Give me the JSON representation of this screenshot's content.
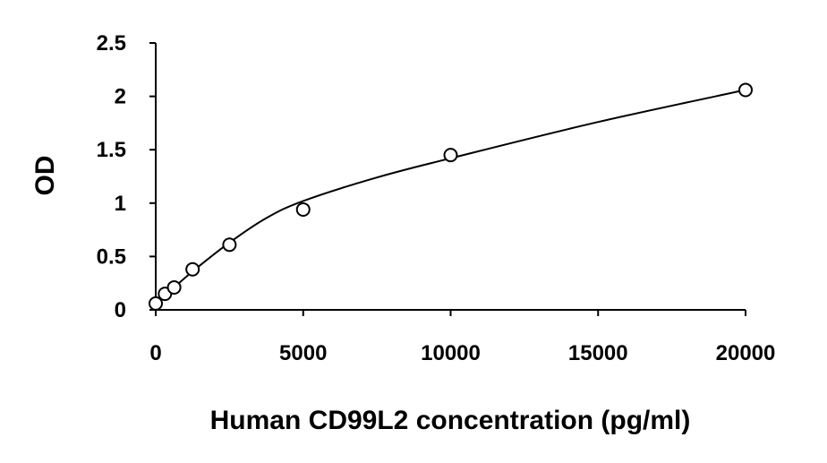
{
  "chart_data": {
    "type": "scatter",
    "title": "",
    "xlabel": "Human CD99L2 concentration (pg/ml)",
    "ylabel": "OD",
    "xlim": [
      0,
      20000
    ],
    "ylim": [
      0,
      2.5
    ],
    "x_ticks": [
      0,
      5000,
      10000,
      15000,
      20000
    ],
    "y_ticks": [
      0,
      0.5,
      1,
      1.5,
      2,
      2.5
    ],
    "x_tick_labels": [
      "0",
      "5000",
      "10000",
      "15000",
      "20000"
    ],
    "y_tick_labels": [
      "0",
      "0.5",
      "1",
      "1.5",
      "2",
      "2.5"
    ],
    "grid": false,
    "legend": "none",
    "marker": "open-circle",
    "trendline": "smooth-fit",
    "series": [
      {
        "x": [
          0,
          312.5,
          625,
          1250,
          2500,
          5000,
          10000,
          20000
        ],
        "y": [
          0.06,
          0.15,
          0.21,
          0.38,
          0.61,
          0.94,
          1.45,
          2.06
        ]
      }
    ],
    "curve": {
      "x": [
        0,
        312.5,
        625,
        1250,
        2500,
        3750,
        5000,
        7500,
        10000,
        15000,
        20000
      ],
      "y": [
        0.06,
        0.13,
        0.21,
        0.36,
        0.63,
        0.86,
        1.02,
        1.24,
        1.42,
        1.76,
        2.06
      ]
    },
    "colors": {
      "axis": "#000000",
      "marker": "#000000",
      "line": "#000000"
    }
  }
}
